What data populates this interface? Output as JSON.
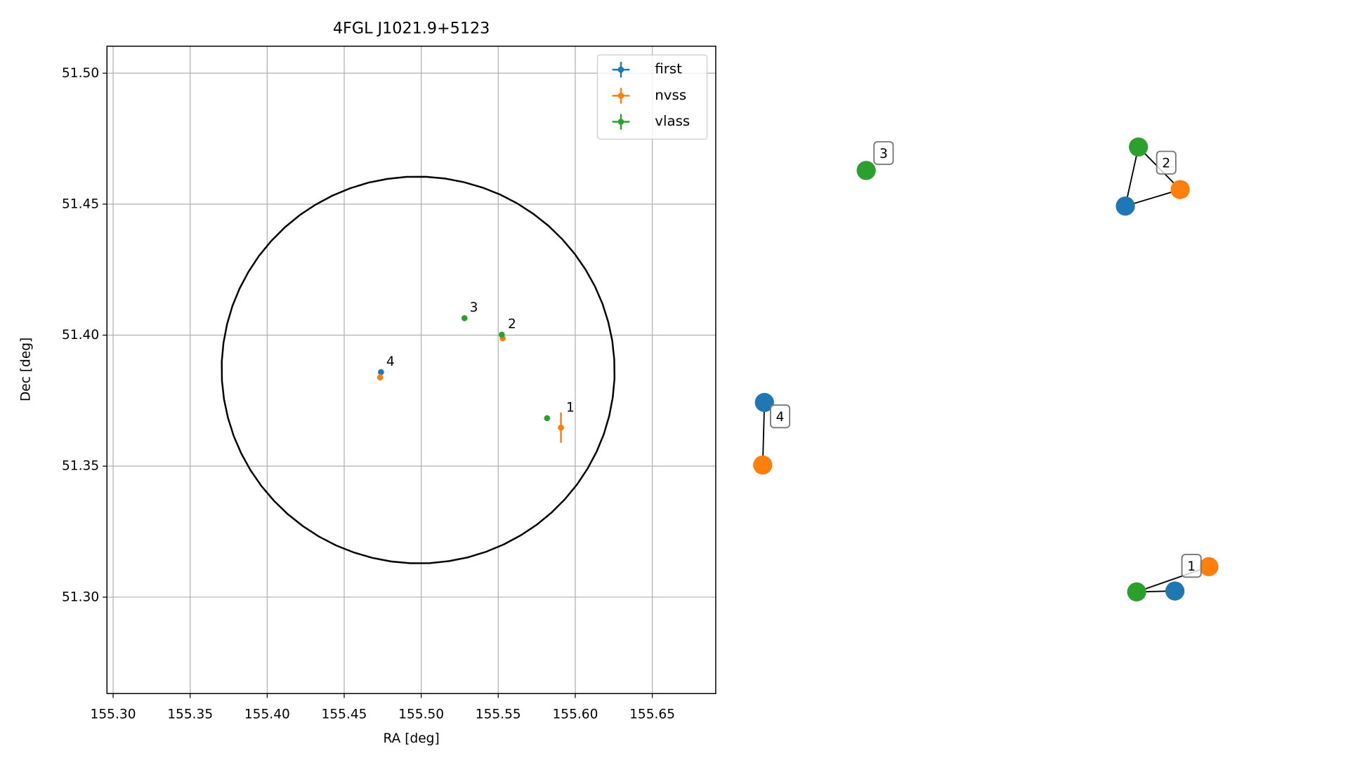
{
  "chart_data": {
    "type": "scatter",
    "title": "4FGL J1021.9+5123",
    "xlabel": "RA [deg]",
    "ylabel": "Dec [deg]",
    "xlim": [
      155.296,
      155.6912
    ],
    "ylim": [
      51.2632,
      51.5103
    ],
    "xticks": [
      {
        "value": 155.3,
        "label": "155.30"
      },
      155.35,
      {
        "value": 155.4,
        "label": "155.40"
      },
      155.45,
      {
        "value": 155.5,
        "label": "155.50"
      },
      155.55,
      {
        "value": 155.6,
        "label": "155.60"
      },
      155.65
    ],
    "yticks": [
      {
        "value": 51.3,
        "label": "51.30"
      },
      51.35,
      {
        "value": 51.4,
        "label": "51.40"
      },
      51.45,
      {
        "value": 51.5,
        "label": "51.50"
      }
    ],
    "grid": true,
    "legend": "upper right",
    "series": [
      {
        "name": "first",
        "color": "#1f77b4",
        "x": [
          155.4739
        ],
        "y": [
          51.3859
        ],
        "yerr": [
          0.0008
        ]
      },
      {
        "name": "nvss",
        "color": "#ff7f0e",
        "x": [
          155.4733,
          155.5529,
          155.5907
        ],
        "y": [
          51.3839,
          51.3988,
          51.3647
        ],
        "yerr": [
          0.0012,
          0.001,
          0.0058
        ]
      },
      {
        "name": "vlass",
        "color": "#2ca02c",
        "x": [
          155.5281,
          155.5523,
          155.5817
        ],
        "y": [
          51.4065,
          51.4002,
          51.3683
        ],
        "yerr": [
          0.0004,
          0.0004,
          0.0004
        ]
      }
    ],
    "ellipse": {
      "center": [
        155.498,
        51.3867
      ],
      "semi_axes": [
        0.1276,
        0.0738
      ],
      "angle": 8
    },
    "annotations": [
      {
        "text": "1",
        "x": 155.5907,
        "y": 51.3683
      },
      {
        "text": "2",
        "x": 155.5529,
        "y": 51.4002
      },
      {
        "text": "3",
        "x": 155.5281,
        "y": 51.4065
      },
      {
        "text": "4",
        "x": 155.4739,
        "y": 51.3859
      }
    ]
  },
  "network": {
    "labels": [
      "1",
      "2",
      "3",
      "4"
    ]
  }
}
